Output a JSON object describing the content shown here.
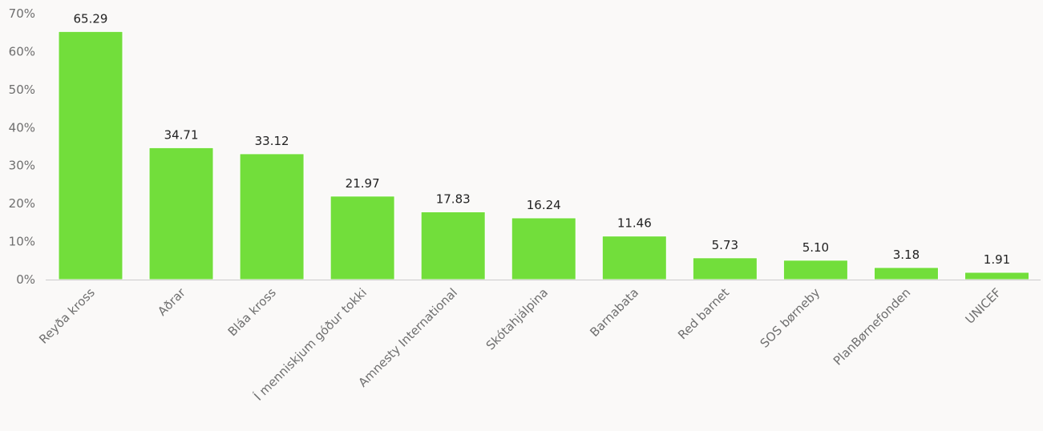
{
  "chart_data": {
    "type": "bar",
    "categories": [
      "Reyða kross",
      "Aðrar",
      "Bláa kross",
      "Í menniskjum góður tokki",
      "Amnesty International",
      "Skótahjálpina",
      "Barnabata",
      "Red barnet",
      "SOS børneby",
      "PlanBørnefonden",
      "UNICEF"
    ],
    "values": [
      65.29,
      34.71,
      33.12,
      21.97,
      17.83,
      16.24,
      11.46,
      5.73,
      5.1,
      3.18,
      1.91
    ],
    "value_labels": [
      "65.29",
      "34.71",
      "33.12",
      "21.97",
      "17.83",
      "16.24",
      "11.46",
      "5.73",
      "5.10",
      "3.18",
      "1.91"
    ],
    "y_ticks": [
      0,
      10,
      20,
      30,
      40,
      50,
      60,
      70
    ],
    "y_tick_labels": [
      "0%",
      "10%",
      "20%",
      "30%",
      "40%",
      "50%",
      "60%",
      "70%"
    ],
    "ylim": [
      0,
      70
    ],
    "grid": false,
    "legend": "none",
    "bar_color": "#72de3b"
  }
}
